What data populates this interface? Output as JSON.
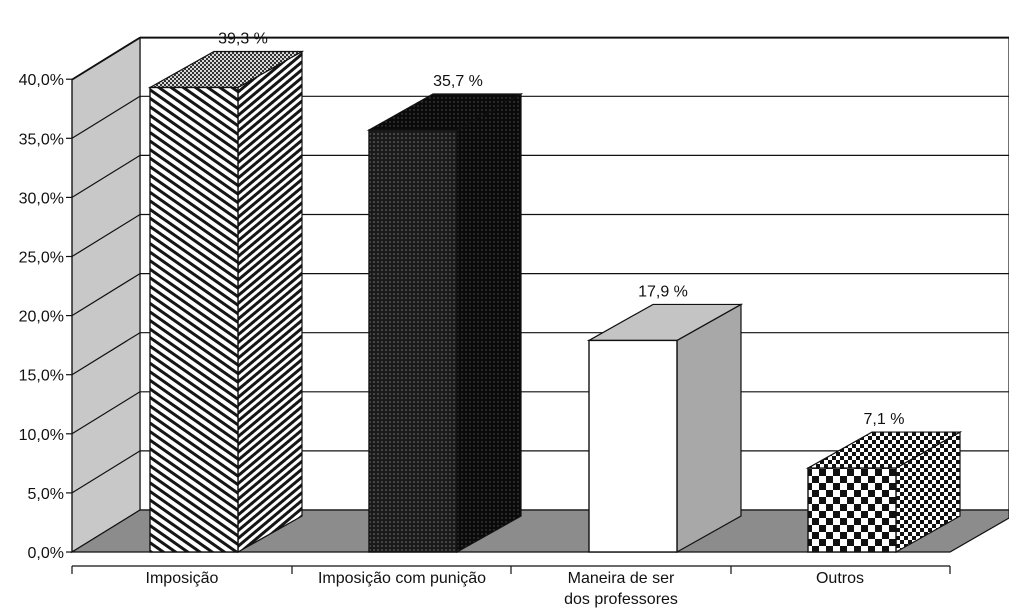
{
  "chart_data": {
    "type": "bar",
    "title": "",
    "xlabel": "",
    "ylabel": "",
    "categories": [
      "Imposição",
      "Imposição com punição",
      "Maneira de ser dos professores",
      "Outros"
    ],
    "category_lines": [
      [
        "Imposição"
      ],
      [
        "Imposição com punição"
      ],
      [
        "Maneira  de  ser",
        "dos professores"
      ],
      [
        "Outros"
      ]
    ],
    "values": [
      39.3,
      35.7,
      17.9,
      7.1
    ],
    "value_labels": [
      "39,3 %",
      "35,7 %",
      "17,9 %",
      "7,1 %"
    ],
    "y_ticks": [
      0,
      5,
      10,
      15,
      20,
      25,
      30,
      35,
      40
    ],
    "y_tick_labels": [
      "0,0%",
      "5,0%",
      "10,0%",
      "15,0%",
      "20,0%",
      "25,0%",
      "30,0%",
      "35,0%",
      "40,0%"
    ],
    "ylim": [
      0,
      40
    ],
    "grid": true,
    "legend": "none",
    "style": "3d-columns",
    "bar_patterns": [
      "diagonal-stripes",
      "dark-dots",
      "solid-white",
      "checkerboard"
    ],
    "colors": {
      "background": "#ffffff",
      "walls": "#c8c8c8",
      "floor": "#8c8c8c",
      "grid": "#111111",
      "bar_outline": "#111111",
      "white_bar_side": "#a8a8a8",
      "white_bar_top": "#c4c4c4"
    }
  }
}
